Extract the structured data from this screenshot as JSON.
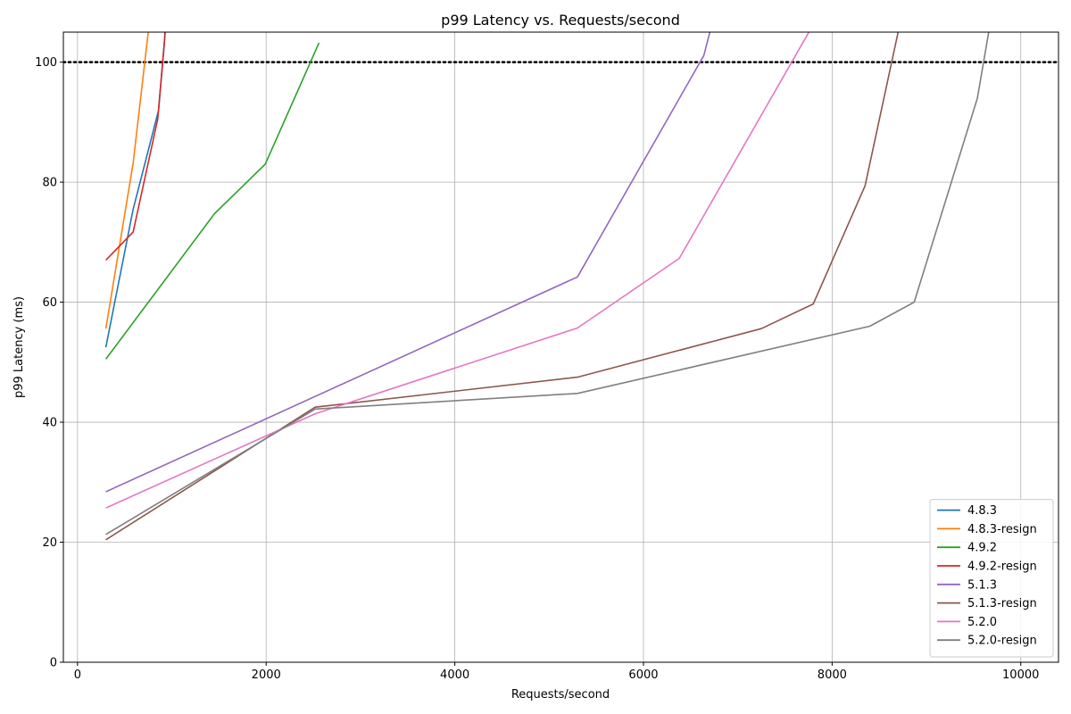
{
  "chart_data": {
    "type": "line",
    "title": "p99 Latency vs. Requests/second",
    "xlabel": "Requests/second",
    "ylabel": "p99 Latency (ms)",
    "xlim": [
      -150,
      10400
    ],
    "ylim": [
      0,
      105
    ],
    "xticks": [
      0,
      2000,
      4000,
      6000,
      8000,
      10000
    ],
    "yticks": [
      0,
      20,
      40,
      60,
      80,
      100
    ],
    "grid": true,
    "legend_position": "lower-right",
    "reference_line": {
      "y": 100,
      "style": "dotted",
      "color": "#000000"
    },
    "series": [
      {
        "name": "4.8.3",
        "color": "#1f77b4",
        "x": [
          300,
          590,
          860,
          920,
          960
        ],
        "y": [
          52.5,
          75.5,
          92,
          103,
          115
        ]
      },
      {
        "name": "4.8.3-resign",
        "color": "#ff7f0e",
        "x": [
          300,
          590,
          750,
          790
        ],
        "y": [
          55.6,
          83.2,
          105,
          112
        ]
      },
      {
        "name": "4.9.2",
        "color": "#2ca02c",
        "x": [
          300,
          1450,
          1990,
          2560
        ],
        "y": [
          50.5,
          74.7,
          83,
          103.2
        ]
      },
      {
        "name": "4.9.2-resign",
        "color": "#d62728",
        "x": [
          300,
          590,
          850,
          930,
          980
        ],
        "y": [
          67,
          71.7,
          90.5,
          105,
          118
        ]
      },
      {
        "name": "5.1.3",
        "color": "#9467bd",
        "x": [
          300,
          5300,
          6640,
          6720,
          6800
        ],
        "y": [
          28.4,
          64.2,
          101.1,
          106,
          112
        ]
      },
      {
        "name": "5.1.3-resign",
        "color": "#8c564b",
        "x": [
          300,
          2520,
          5300,
          7250,
          7800,
          8350,
          8700,
          8800
        ],
        "y": [
          20.4,
          42.5,
          47.5,
          55.6,
          59.7,
          79.4,
          105,
          112
        ]
      },
      {
        "name": "5.2.0",
        "color": "#e377c2",
        "x": [
          300,
          2520,
          5300,
          6380,
          7750,
          7850
        ],
        "y": [
          25.7,
          41.4,
          55.7,
          67.3,
          104.9,
          108
        ]
      },
      {
        "name": "5.2.0-resign",
        "color": "#7f7f7f",
        "x": [
          300,
          2520,
          5300,
          8400,
          8870,
          9540,
          9660,
          9700
        ],
        "y": [
          21.3,
          42.2,
          44.8,
          56,
          60,
          94,
          105,
          108
        ]
      }
    ]
  }
}
